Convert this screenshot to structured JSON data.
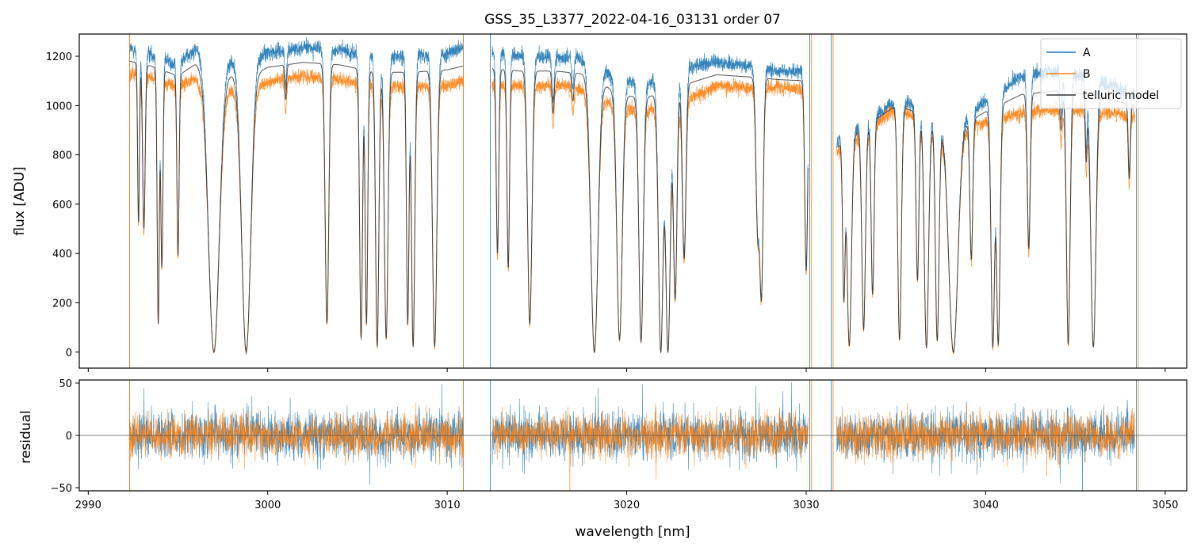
{
  "chart_data": [
    {
      "type": "line",
      "panel": "top",
      "title": "GSS_35_L3377_2022-04-16_03131  order 07",
      "xlabel": "",
      "ylabel": "flux [ADU]",
      "xlim": [
        2989.5,
        3051.2
      ],
      "ylim": [
        -65,
        1290
      ],
      "yticks": [
        0,
        200,
        400,
        600,
        800,
        1000,
        1200
      ],
      "ytick_labels": [
        "0",
        "200",
        "400",
        "600",
        "800",
        "1000",
        "1200"
      ],
      "xticks": [
        2990,
        3000,
        3010,
        3020,
        3030,
        3040,
        3050
      ],
      "segments": [
        [
          2992.3,
          3010.9
        ],
        [
          3012.5,
          3030.1
        ],
        [
          3031.7,
          3048.3
        ]
      ],
      "continuum": {
        "x": [
          2992.3,
          2993.5,
          2995.0,
          2996.0,
          2997.5,
          2999.0,
          3000.0,
          3002.0,
          3004.0,
          3006.0,
          3008.0,
          3010.0,
          3010.9,
          3012.5,
          3014.0,
          3016.0,
          3018.0,
          3019.5,
          3021.0,
          3023.0,
          3025.0,
          3027.0,
          3028.5,
          3030.1,
          3031.7,
          3033.0,
          3035.0,
          3036.5,
          3038.0,
          3040.0,
          3042.0,
          3044.0,
          3046.0,
          3048.3
        ],
        "A": [
          1230,
          1210,
          1165,
          1235,
          1190,
          1180,
          1215,
          1235,
          1225,
          1195,
          1200,
          1210,
          1230,
          1215,
          1205,
          1195,
          1190,
          1100,
          1085,
          1150,
          1175,
          1160,
          1140,
          1140,
          850,
          925,
          1010,
          1000,
          900,
          1020,
          1120,
          1140,
          1110,
          1040
        ],
        "B": [
          1130,
          1115,
          1075,
          1110,
          1075,
          1060,
          1095,
          1120,
          1105,
          1075,
          1075,
          1080,
          1100,
          1085,
          1080,
          1085,
          1065,
          990,
          980,
          1010,
          1080,
          1070,
          1075,
          1060,
          810,
          870,
          990,
          935,
          880,
          930,
          970,
          985,
          975,
          960
        ],
        "model": [
          1180,
          1160,
          1120,
          1170,
          1130,
          1120,
          1155,
          1175,
          1165,
          1135,
          1135,
          1145,
          1160,
          1150,
          1140,
          1140,
          1125,
          1045,
          1030,
          1080,
          1125,
          1115,
          1105,
          1100,
          830,
          900,
          1000,
          965,
          890,
          975,
          1045,
          1060,
          1040,
          1000
        ]
      },
      "absorption_lines": [
        {
          "x": 2992.8,
          "depth": 0.55,
          "w": 0.05
        },
        {
          "x": 2993.1,
          "depth": 0.57,
          "w": 0.07
        },
        {
          "x": 2993.9,
          "depth": 0.9,
          "w": 0.06
        },
        {
          "x": 2994.1,
          "depth": 0.7,
          "w": 0.06
        },
        {
          "x": 2995.0,
          "depth": 0.65,
          "w": 0.06
        },
        {
          "x": 2997.0,
          "depth": 1.0,
          "w": 0.3
        },
        {
          "x": 2998.8,
          "depth": 1.0,
          "w": 0.25
        },
        {
          "x": 3001.0,
          "depth": 0.12,
          "w": 0.05
        },
        {
          "x": 3003.3,
          "depth": 0.9,
          "w": 0.1
        },
        {
          "x": 3005.2,
          "depth": 0.95,
          "w": 0.08
        },
        {
          "x": 3005.5,
          "depth": 0.9,
          "w": 0.07
        },
        {
          "x": 3006.1,
          "depth": 0.98,
          "w": 0.09
        },
        {
          "x": 3006.6,
          "depth": 0.95,
          "w": 0.1
        },
        {
          "x": 3007.8,
          "depth": 0.9,
          "w": 0.07
        },
        {
          "x": 3008.1,
          "depth": 0.98,
          "w": 0.09
        },
        {
          "x": 3009.3,
          "depth": 0.98,
          "w": 0.12
        },
        {
          "x": 3012.8,
          "depth": 0.65,
          "w": 0.07
        },
        {
          "x": 3013.4,
          "depth": 0.7,
          "w": 0.07
        },
        {
          "x": 3014.6,
          "depth": 0.9,
          "w": 0.12
        },
        {
          "x": 3015.9,
          "depth": 0.15,
          "w": 0.06
        },
        {
          "x": 3017.0,
          "depth": 0.1,
          "w": 0.06
        },
        {
          "x": 3018.2,
          "depth": 1.0,
          "w": 0.2
        },
        {
          "x": 3019.6,
          "depth": 0.95,
          "w": 0.15
        },
        {
          "x": 3020.8,
          "depth": 0.96,
          "w": 0.12
        },
        {
          "x": 3021.9,
          "depth": 1.0,
          "w": 0.13
        },
        {
          "x": 3022.3,
          "depth": 1.0,
          "w": 0.13
        },
        {
          "x": 3022.7,
          "depth": 0.8,
          "w": 0.1
        },
        {
          "x": 3023.2,
          "depth": 0.65,
          "w": 0.1
        },
        {
          "x": 3027.3,
          "depth": 0.55,
          "w": 0.1
        },
        {
          "x": 3027.5,
          "depth": 0.8,
          "w": 0.1
        },
        {
          "x": 3030.0,
          "depth": 0.7,
          "w": 0.08
        },
        {
          "x": 3032.1,
          "depth": 0.75,
          "w": 0.07
        },
        {
          "x": 3032.4,
          "depth": 0.97,
          "w": 0.12
        },
        {
          "x": 3033.2,
          "depth": 0.9,
          "w": 0.1
        },
        {
          "x": 3033.7,
          "depth": 0.75,
          "w": 0.08
        },
        {
          "x": 3035.2,
          "depth": 0.95,
          "w": 0.1
        },
        {
          "x": 3036.2,
          "depth": 0.7,
          "w": 0.08
        },
        {
          "x": 3036.7,
          "depth": 0.98,
          "w": 0.12
        },
        {
          "x": 3037.3,
          "depth": 0.95,
          "w": 0.1
        },
        {
          "x": 3038.2,
          "depth": 1.0,
          "w": 0.25
        },
        {
          "x": 3039.2,
          "depth": 0.6,
          "w": 0.08
        },
        {
          "x": 3040.4,
          "depth": 0.98,
          "w": 0.1
        },
        {
          "x": 3040.7,
          "depth": 0.97,
          "w": 0.1
        },
        {
          "x": 3042.4,
          "depth": 0.6,
          "w": 0.08
        },
        {
          "x": 3044.2,
          "depth": 0.15,
          "w": 0.06
        },
        {
          "x": 3044.6,
          "depth": 0.97,
          "w": 0.1
        },
        {
          "x": 3045.6,
          "depth": 0.25,
          "w": 0.05
        },
        {
          "x": 3046.0,
          "depth": 0.98,
          "w": 0.14
        },
        {
          "x": 3048.0,
          "depth": 0.3,
          "w": 0.06
        }
      ],
      "spikes": [
        {
          "x": 2992.3,
          "series": "A"
        },
        {
          "x": 2992.3,
          "series": "B"
        },
        {
          "x": 3010.9,
          "series": "A"
        },
        {
          "x": 3010.9,
          "series": "B"
        },
        {
          "x": 3012.4,
          "series": "A"
        },
        {
          "x": 3030.2,
          "series": "A"
        },
        {
          "x": 3030.3,
          "series": "B"
        },
        {
          "x": 3031.4,
          "series": "A"
        },
        {
          "x": 3031.5,
          "series": "B"
        },
        {
          "x": 3048.4,
          "series": "A"
        },
        {
          "x": 3048.5,
          "series": "B"
        }
      ],
      "legend": {
        "placement": "top-right",
        "entries": [
          {
            "label": "A",
            "color": "#1f77b4"
          },
          {
            "label": "B",
            "color": "#ff7f0e"
          },
          {
            "label": "telluric model",
            "color": "#333333"
          }
        ]
      }
    },
    {
      "type": "line",
      "panel": "bottom",
      "xlabel": "wavelength [nm]",
      "ylabel": "residual",
      "xlim": [
        2989.5,
        3051.2
      ],
      "ylim": [
        -53,
        53
      ],
      "yticks": [
        -50,
        0,
        50
      ],
      "ytick_labels": [
        "−50",
        "0",
        "50"
      ],
      "xticks": [
        2990,
        3000,
        3010,
        3020,
        3030,
        3040,
        3050
      ],
      "xtick_labels": [
        "2990",
        "3000",
        "3010",
        "3020",
        "3030",
        "3040",
        "3050"
      ],
      "noise_sigma": {
        "A": 16,
        "B": 14
      },
      "zero_line": 0
    }
  ],
  "colors": {
    "A": "#1f77b4",
    "B": "#ff7f0e",
    "model": "#333333",
    "zero": "#555555"
  }
}
